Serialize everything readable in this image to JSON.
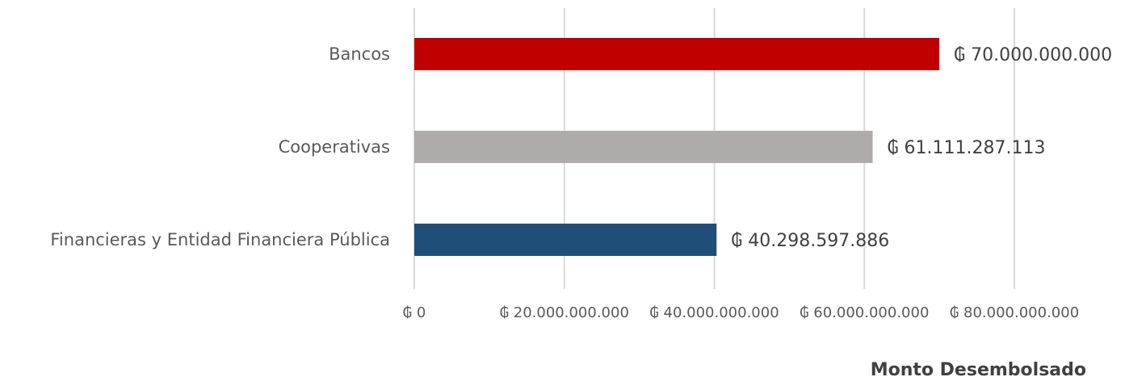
{
  "chart_data": {
    "type": "bar",
    "orientation": "horizontal",
    "categories": [
      "Bancos",
      "Cooperativas",
      "Financieras y Entidad Financiera Pública"
    ],
    "values": [
      70000000000,
      61111287113,
      40298597886
    ],
    "data_labels": [
      "₲ 70.000.000.000",
      "₲ 61.111.287.113",
      "₲ 40.298.597.886"
    ],
    "colors": [
      "#c00000",
      "#afabab",
      "#1f4e79"
    ],
    "xlim": [
      0,
      80000000000
    ],
    "xticks": [
      0,
      20000000000,
      40000000000,
      60000000000,
      80000000000
    ],
    "xtick_labels": [
      "₲ 0",
      "₲ 20.000.000.000",
      "₲ 40.000.000.000",
      "₲ 60.000.000.000",
      "₲ 80.000.000.000"
    ],
    "xlabel": "Monto Desembolsado",
    "grid": "vertical"
  }
}
